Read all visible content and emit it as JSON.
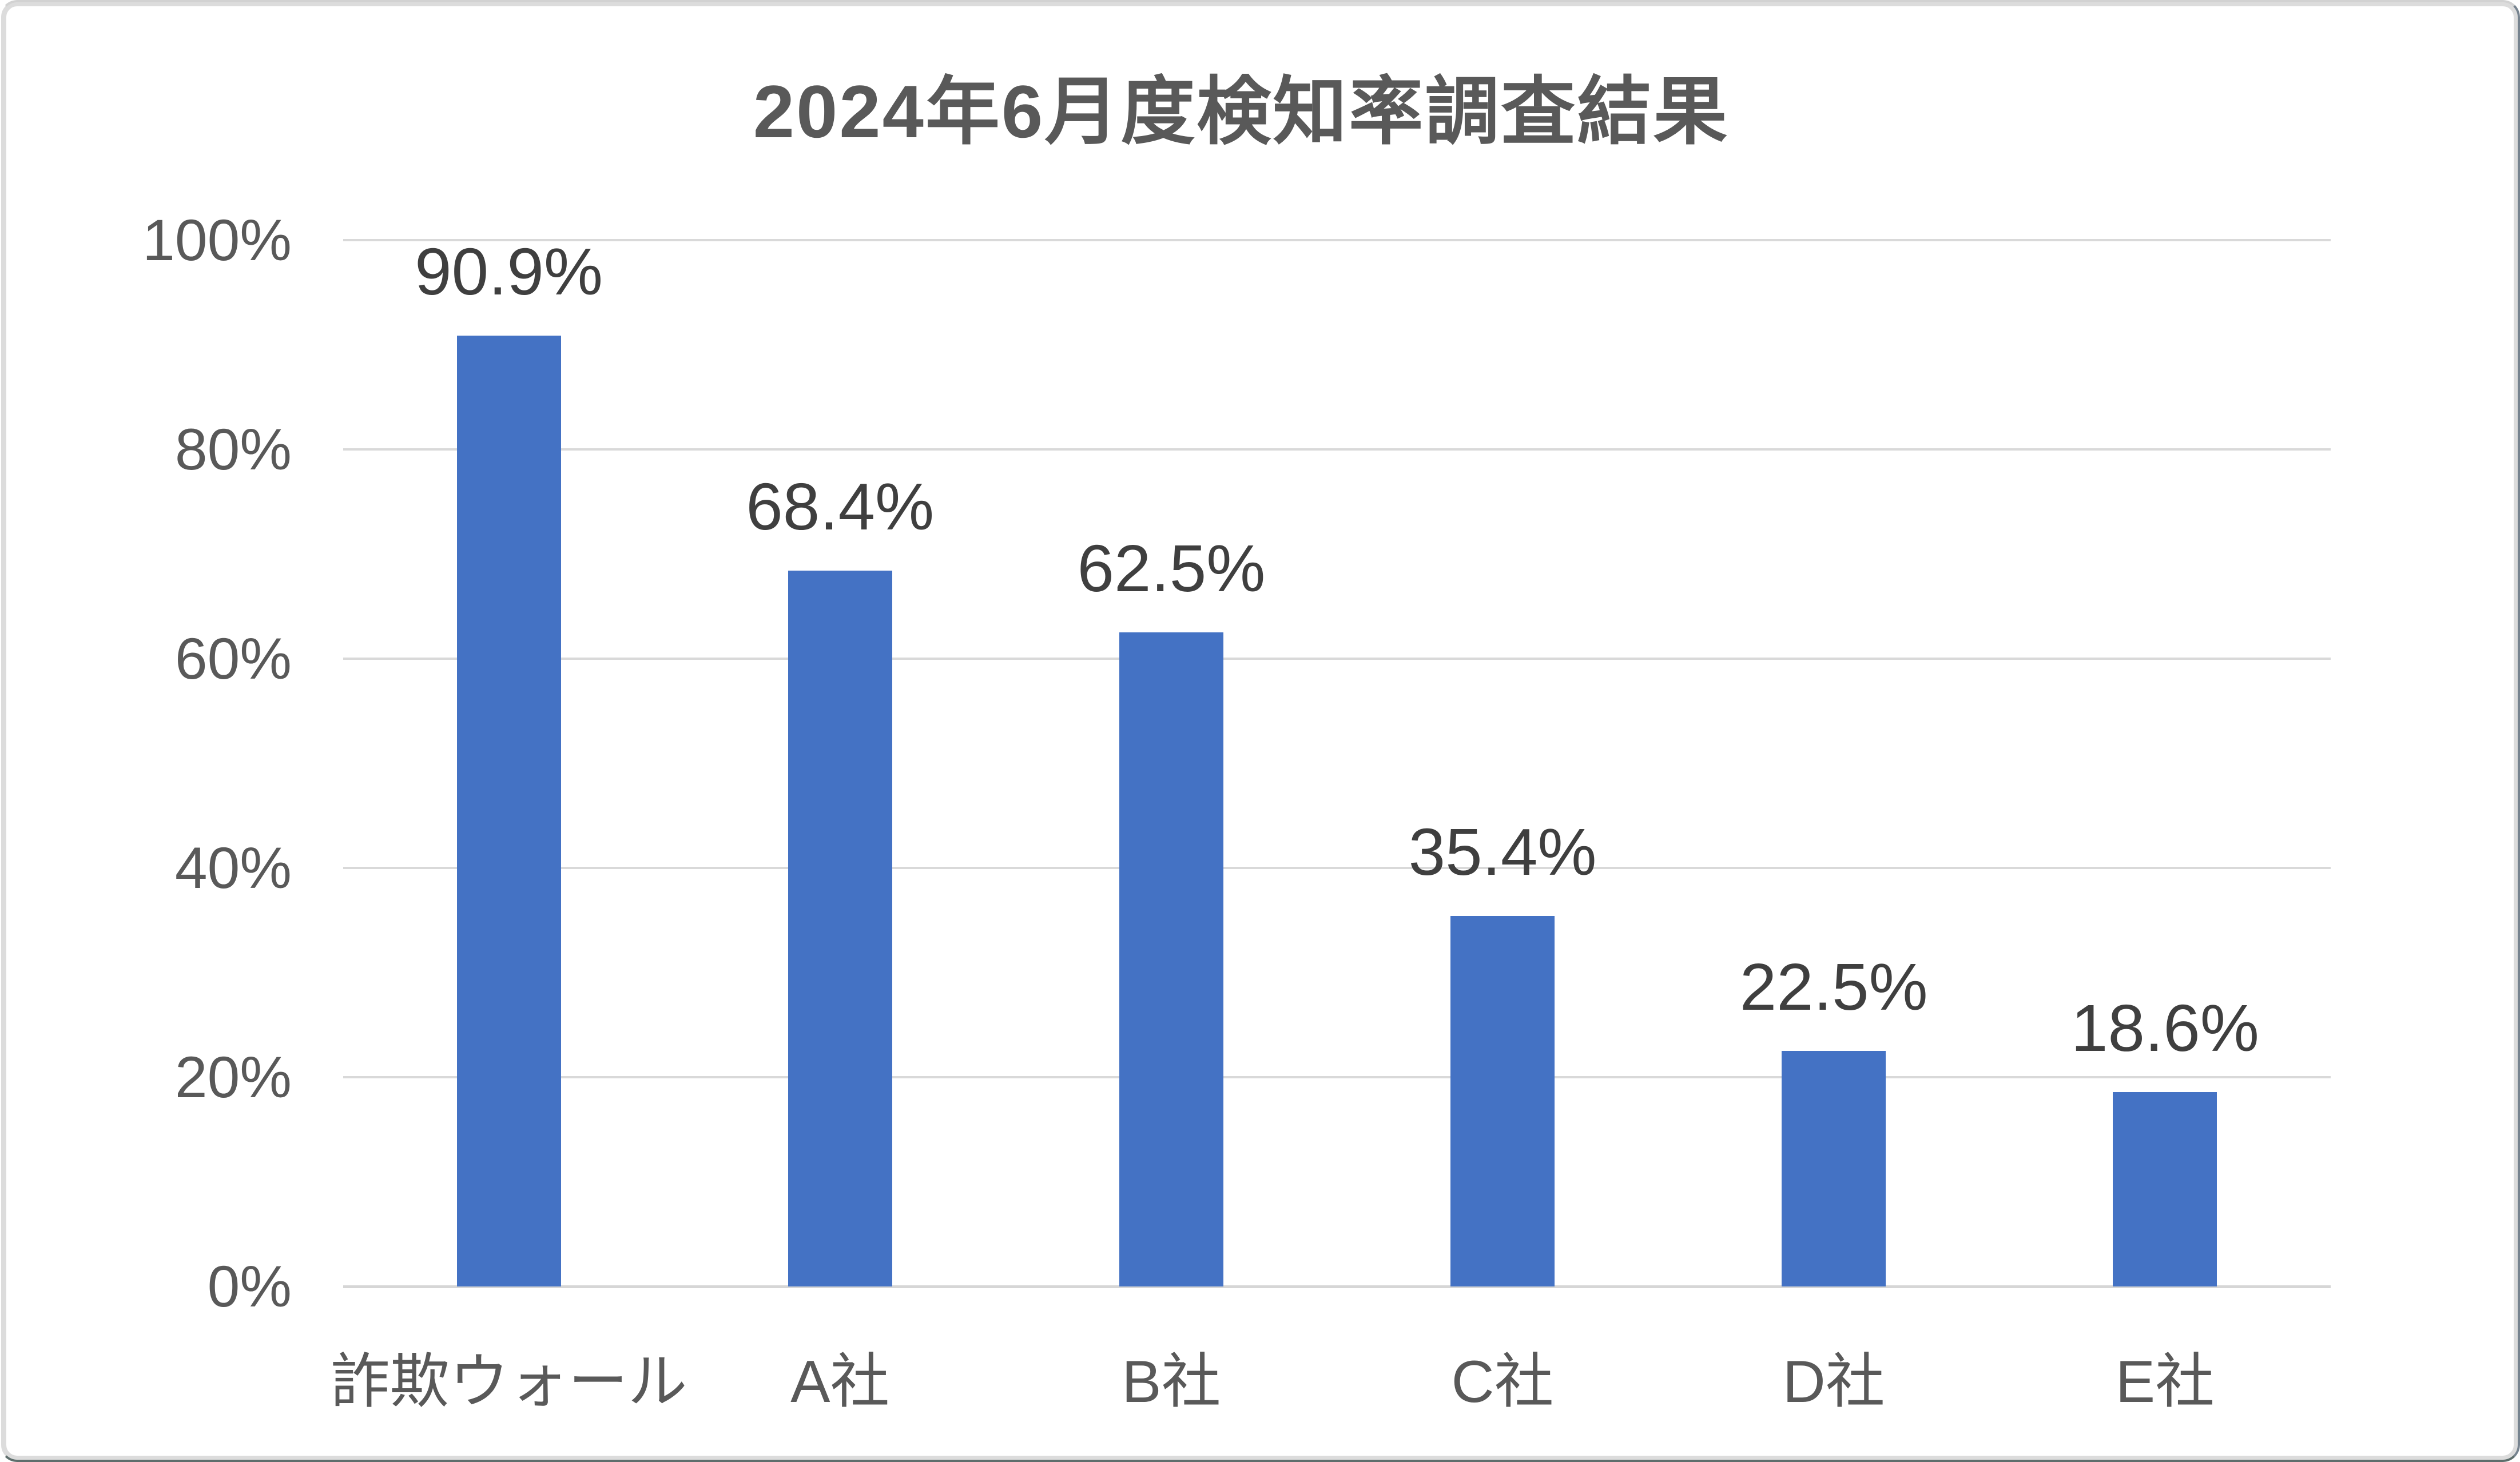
{
  "title": "2024年6月度検知率調査結果",
  "chart_data": {
    "type": "bar",
    "title": "2024年6月度検知率調査結果",
    "categories": [
      "詐欺ウォール",
      "A社",
      "B社",
      "C社",
      "D社",
      "E社"
    ],
    "values": [
      90.9,
      68.4,
      62.5,
      35.4,
      22.5,
      18.6
    ],
    "data_labels": [
      "90.9%",
      "68.4%",
      "62.5%",
      "35.4%",
      "22.5%",
      "18.6%"
    ],
    "y_ticks": [
      {
        "label": "100%",
        "value": 100
      },
      {
        "label": "80%",
        "value": 80
      },
      {
        "label": "60%",
        "value": 60
      },
      {
        "label": "40%",
        "value": 40
      },
      {
        "label": "20%",
        "value": 20
      },
      {
        "label": "0%",
        "value": 0
      }
    ],
    "ylim": [
      0,
      100
    ],
    "grid": true,
    "legend": "none",
    "xlabel": "",
    "ylabel": "",
    "colors": {
      "bar": "#4472C4",
      "gridline": "#D9D9D9",
      "axis_text": "#595959",
      "title_text": "#595959",
      "data_label_text": "#3F3F3F",
      "frame_border": "#DCDCDC"
    }
  }
}
